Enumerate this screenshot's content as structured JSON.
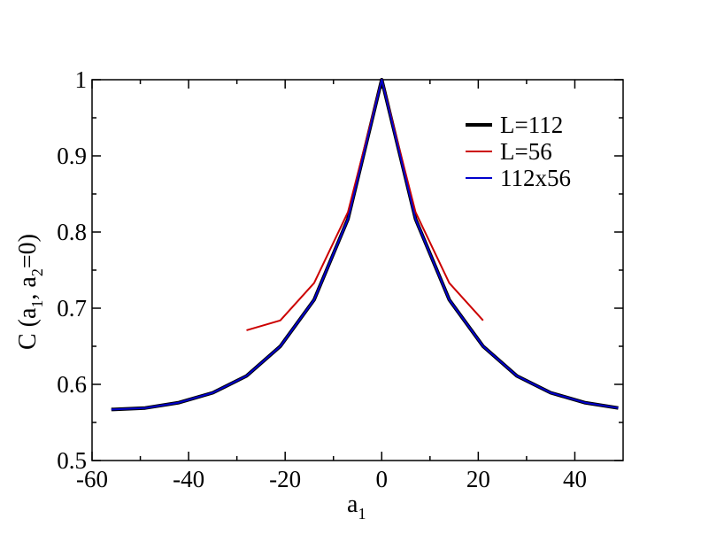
{
  "chart_data": {
    "type": "line",
    "xlabel": {
      "base": "a",
      "sub": "1"
    },
    "ylabel": {
      "parts": [
        "C (a",
        "1",
        ", a",
        "2",
        "=0)"
      ]
    },
    "xlim": [
      -60,
      50
    ],
    "ylim": [
      0.5,
      1.0
    ],
    "x_ticks": [
      "-60",
      "-40",
      "-20",
      "0",
      "20",
      "40"
    ],
    "x_tick_values": [
      -60,
      -40,
      -20,
      0,
      20,
      40
    ],
    "y_ticks": [
      "0.5",
      "0.6",
      "0.7",
      "0.8",
      "0.9",
      "1"
    ],
    "y_tick_values": [
      0.5,
      0.6,
      0.7,
      0.8,
      0.9,
      1.0
    ],
    "grid": false,
    "legend_position": "top-right",
    "series": [
      {
        "name": "L=112",
        "color": "#000000",
        "x": [
          -56,
          -49,
          -42,
          -35,
          -28,
          -21,
          -14,
          -7,
          0,
          7,
          14,
          21,
          28,
          35,
          42,
          49
        ],
        "y": [
          0.567,
          0.569,
          0.576,
          0.589,
          0.611,
          0.65,
          0.711,
          0.817,
          1.0,
          0.817,
          0.711,
          0.65,
          0.611,
          0.589,
          0.576,
          0.569
        ]
      },
      {
        "name": "L=56",
        "color": "#cc0000",
        "x": [
          -28,
          -21,
          -14,
          -7,
          0,
          7,
          14,
          21
        ],
        "y": [
          0.671,
          0.684,
          0.733,
          0.826,
          1.0,
          0.826,
          0.733,
          0.684
        ]
      },
      {
        "name": "112x56",
        "color": "#0000cc",
        "x": [
          -56,
          -49,
          -42,
          -35,
          -28,
          -21,
          -14,
          -7,
          0,
          7,
          14,
          21,
          28,
          35,
          42,
          49
        ],
        "y": [
          0.567,
          0.569,
          0.576,
          0.589,
          0.611,
          0.65,
          0.711,
          0.817,
          1.0,
          0.817,
          0.711,
          0.65,
          0.611,
          0.589,
          0.576,
          0.569
        ]
      }
    ]
  }
}
